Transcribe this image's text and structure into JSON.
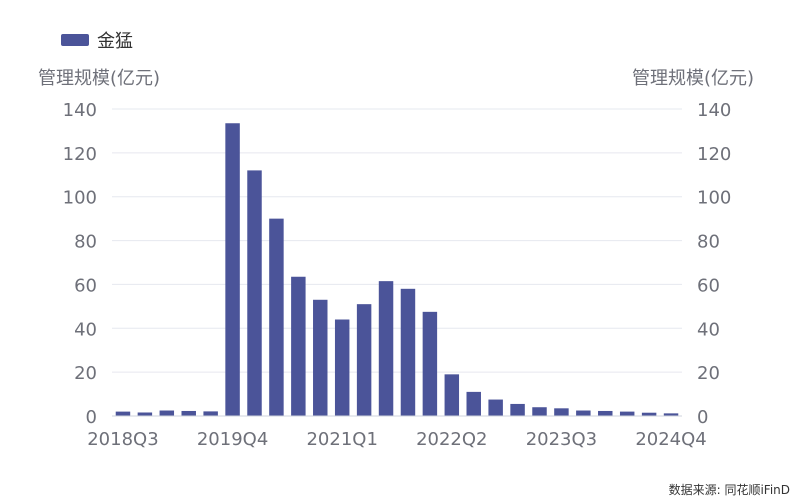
{
  "chart_data": {
    "type": "bar",
    "categories": [
      "2018Q3",
      "2018Q4",
      "2019Q1",
      "2019Q2",
      "2019Q3",
      "2019Q4",
      "2020Q1",
      "2020Q2",
      "2020Q3",
      "2020Q4",
      "2021Q1",
      "2021Q2",
      "2021Q3",
      "2021Q4",
      "2022Q1",
      "2022Q2",
      "2022Q3",
      "2022Q4",
      "2023Q1",
      "2023Q2",
      "2023Q3",
      "2023Q4",
      "2024Q1",
      "2024Q2",
      "2024Q3",
      "2024Q4"
    ],
    "series": [
      {
        "name": "金猛",
        "color": "#4b5499",
        "values": [
          2.0,
          1.6,
          2.5,
          2.3,
          2.1,
          133.5,
          112.0,
          90.0,
          63.5,
          53.0,
          44.0,
          51.0,
          61.5,
          58.0,
          47.5,
          19.0,
          11.0,
          7.5,
          5.5,
          4.0,
          3.5,
          2.5,
          2.3,
          2.0,
          1.5,
          1.2
        ]
      }
    ],
    "x_tick_labels": [
      "2018Q3",
      "2019Q4",
      "2021Q1",
      "2022Q2",
      "2023Q3",
      "2024Q4"
    ],
    "y_left": {
      "label": "管理规模(亿元)",
      "min": 0,
      "max": 140,
      "ticks": [
        0,
        20,
        40,
        60,
        80,
        100,
        120,
        140
      ]
    },
    "y_right": {
      "label": "管理规模(亿元)",
      "min": 0,
      "max": 140,
      "ticks": [
        0,
        20,
        40,
        60,
        80,
        100,
        120,
        140
      ]
    },
    "grid": true,
    "legend_position": "top-left"
  },
  "source": "数据来源: 同花顺iFinD"
}
